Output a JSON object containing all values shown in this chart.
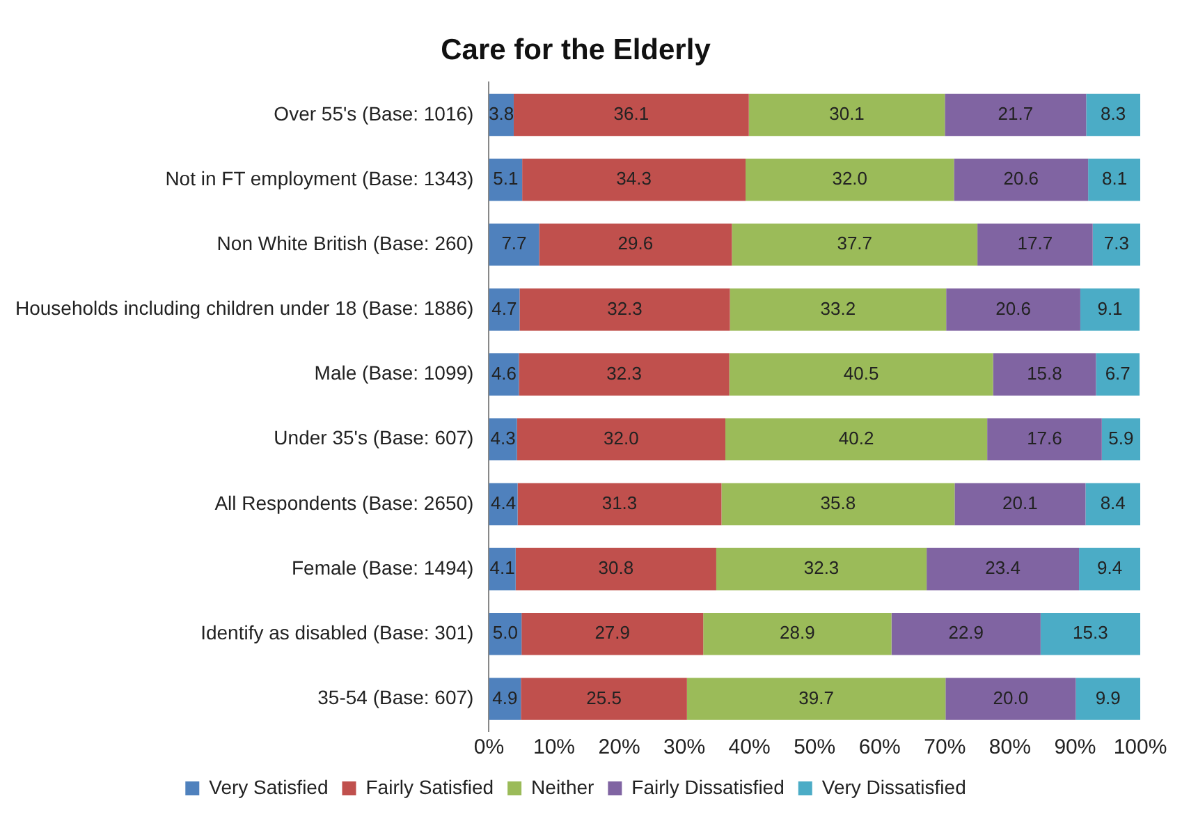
{
  "chart_data": {
    "type": "bar",
    "orientation": "horizontal",
    "stacked": true,
    "title": "Care for the Elderly",
    "categories": [
      "Over 55's (Base: 1016)",
      "Not in FT employment (Base: 1343)",
      "Non White British (Base: 260)",
      "Households including children under 18 (Base: 1886)",
      "Male (Base: 1099)",
      "Under 35's (Base: 607)",
      "All Respondents (Base: 2650)",
      "Female (Base: 1494)",
      "Identify as disabled (Base: 301)",
      "35-54 (Base: 607)"
    ],
    "series": [
      {
        "name": "Very Satisfied",
        "color": "#4f81bd",
        "values": [
          3.8,
          5.1,
          7.7,
          4.7,
          4.6,
          4.3,
          4.4,
          4.1,
          5.0,
          4.9
        ],
        "value_labels": [
          "3.8",
          "5.1",
          "7.7",
          "4.7",
          "4.6",
          "4.3",
          "4.4",
          "4.1",
          "5.0",
          "4.9"
        ]
      },
      {
        "name": "Fairly Satisfied",
        "color": "#c0504d",
        "values": [
          36.1,
          34.3,
          29.6,
          32.3,
          32.3,
          32.0,
          31.3,
          30.8,
          27.9,
          25.5
        ],
        "value_labels": [
          "36.1",
          "34.3",
          "29.6",
          "32.3",
          "32.3",
          "32.0",
          "31.3",
          "30.8",
          "27.9",
          "25.5"
        ]
      },
      {
        "name": "Neither",
        "color": "#9bbb59",
        "values": [
          30.1,
          32.0,
          37.7,
          33.2,
          40.5,
          40.2,
          35.8,
          32.3,
          28.9,
          39.7
        ],
        "value_labels": [
          "30.1",
          "32.0",
          "37.7",
          "33.2",
          "40.5",
          "40.2",
          "35.8",
          "32.3",
          "28.9",
          "39.7"
        ]
      },
      {
        "name": "Fairly Dissatisfied",
        "color": "#8064a2",
        "values": [
          21.7,
          20.6,
          17.7,
          20.6,
          15.8,
          17.6,
          20.1,
          23.4,
          22.9,
          20.0
        ],
        "value_labels": [
          "21.7",
          "20.6",
          "17.7",
          "20.6",
          "15.8",
          "17.6",
          "20.1",
          "23.4",
          "22.9",
          "20.0"
        ]
      },
      {
        "name": "Very Dissatisfied",
        "color": "#4bacc6",
        "values": [
          8.3,
          8.1,
          7.3,
          9.1,
          6.7,
          5.9,
          8.4,
          9.4,
          15.3,
          9.9
        ],
        "value_labels": [
          "8.3",
          "8.1",
          "7.3",
          "9.1",
          "6.7",
          "5.9",
          "8.4",
          "9.4",
          "15.3",
          "9.9"
        ]
      }
    ],
    "xlim": [
      0,
      100
    ],
    "xticks": [
      {
        "value": 0,
        "label": "0%"
      },
      {
        "value": 10,
        "label": "10%"
      },
      {
        "value": 20,
        "label": "20%"
      },
      {
        "value": 30,
        "label": "30%"
      },
      {
        "value": 40,
        "label": "40%"
      },
      {
        "value": 50,
        "label": "50%"
      },
      {
        "value": 60,
        "label": "60%"
      },
      {
        "value": 70,
        "label": "70%"
      },
      {
        "value": 80,
        "label": "80%"
      },
      {
        "value": 90,
        "label": "90%"
      },
      {
        "value": 100,
        "label": "100%"
      }
    ],
    "grid": false,
    "legend": "bottom"
  }
}
